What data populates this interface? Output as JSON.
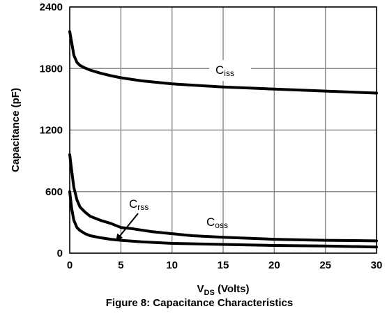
{
  "chart_data": {
    "type": "line",
    "caption": "Figure 8: Capacitance Characteristics",
    "xlabel": {
      "main": "V",
      "sub": "DS",
      "rest": " (Volts)"
    },
    "ylabel": "Capacitance (pF)",
    "xlim": [
      0,
      30
    ],
    "ylim": [
      0,
      2400
    ],
    "xticks": [
      "0",
      "5",
      "10",
      "15",
      "20",
      "25",
      "30"
    ],
    "yticks": [
      "0",
      "600",
      "1200",
      "1800",
      "2400"
    ],
    "grid": true,
    "series": [
      {
        "name": "C",
        "name_sub": "iss",
        "x": [
          0,
          0.2,
          0.4,
          0.7,
          1,
          1.5,
          2,
          3,
          4,
          5,
          7,
          10,
          15,
          20,
          25,
          30
        ],
        "y": [
          2160,
          2050,
          1930,
          1860,
          1830,
          1805,
          1785,
          1755,
          1730,
          1710,
          1680,
          1650,
          1620,
          1600,
          1580,
          1560
        ]
      },
      {
        "name": "C",
        "name_sub": "oss",
        "x": [
          0,
          0.2,
          0.4,
          0.7,
          1,
          1.5,
          2,
          3,
          4,
          5,
          6,
          8,
          10,
          12,
          15,
          20,
          25,
          30
        ],
        "y": [
          960,
          800,
          640,
          520,
          450,
          400,
          360,
          320,
          290,
          250,
          240,
          210,
          190,
          170,
          155,
          135,
          125,
          120
        ]
      },
      {
        "name": "C",
        "name_sub": "rss",
        "x": [
          0,
          0.2,
          0.4,
          0.7,
          1,
          1.5,
          2,
          3,
          4,
          5,
          7,
          10,
          15,
          20,
          25,
          30
        ],
        "y": [
          600,
          430,
          320,
          250,
          220,
          190,
          170,
          150,
          135,
          125,
          110,
          95,
          85,
          75,
          70,
          60
        ]
      }
    ]
  }
}
